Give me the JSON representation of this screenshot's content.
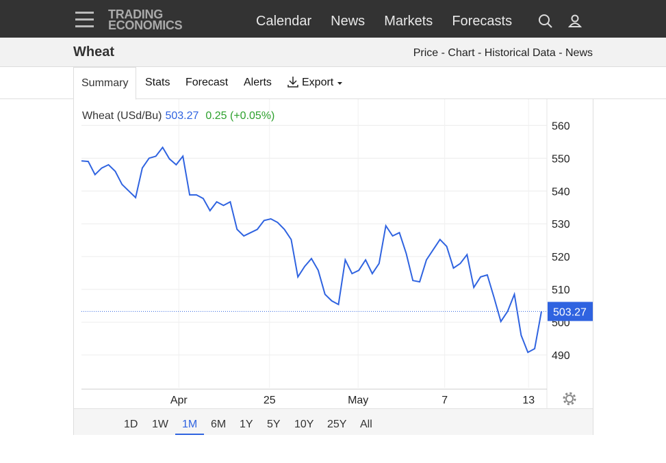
{
  "nav": {
    "logo": [
      "TRADING",
      "ECONOMICS"
    ],
    "links": [
      "Calendar",
      "News",
      "Markets",
      "Forecasts"
    ]
  },
  "header": {
    "title": "Wheat",
    "links": "Price - Chart - Historical Data - News"
  },
  "tabs": [
    "Summary",
    "Stats",
    "Forecast",
    "Alerts",
    "Export"
  ],
  "quote": {
    "change": "0.25 (+0.05%)"
  },
  "ranges": [
    "1D",
    "1W",
    "1M",
    "6M",
    "1Y",
    "5Y",
    "10Y",
    "25Y",
    "All"
  ],
  "active_range": "1M",
  "chart_data": {
    "type": "line",
    "series_name": "Wheat (USd/Bu)",
    "color": "#2f63e0",
    "values": [
      549.2,
      549,
      545,
      547,
      548,
      546,
      542,
      540,
      538,
      547,
      550,
      550.6,
      553.3,
      549.8,
      548,
      550.6,
      538.8,
      538.8,
      537.7,
      534,
      536.7,
      535.6,
      536.7,
      528.3,
      526.3,
      527.3,
      528.3,
      531,
      531.5,
      530.4,
      528.3,
      525.2,
      513.8,
      517,
      519.4,
      515.8,
      508.5,
      506.5,
      505.4,
      519,
      514.8,
      515.8,
      519,
      514.8,
      517.9,
      529.4,
      526.3,
      527.3,
      521,
      512.7,
      512.3,
      519,
      522.1,
      525.2,
      523.1,
      516.5,
      517.9,
      520.6,
      510.6,
      513.8,
      514.4,
      507.5,
      500.2,
      503.3,
      508.5,
      496,
      490.8,
      491.9,
      503.27
    ],
    "ylim": [
      480,
      568
    ],
    "yticks": [
      490,
      500,
      510,
      520,
      530,
      540,
      550,
      560
    ],
    "xlim": [
      0,
      68
    ],
    "xticks": [
      {
        "value": 14.4,
        "label": "Apr"
      },
      {
        "value": 27.8,
        "label": "25"
      },
      {
        "value": 40.9,
        "label": "May"
      },
      {
        "value": 53.7,
        "label": "7"
      },
      {
        "value": 66.1,
        "label": "13"
      }
    ],
    "grid": true
  }
}
